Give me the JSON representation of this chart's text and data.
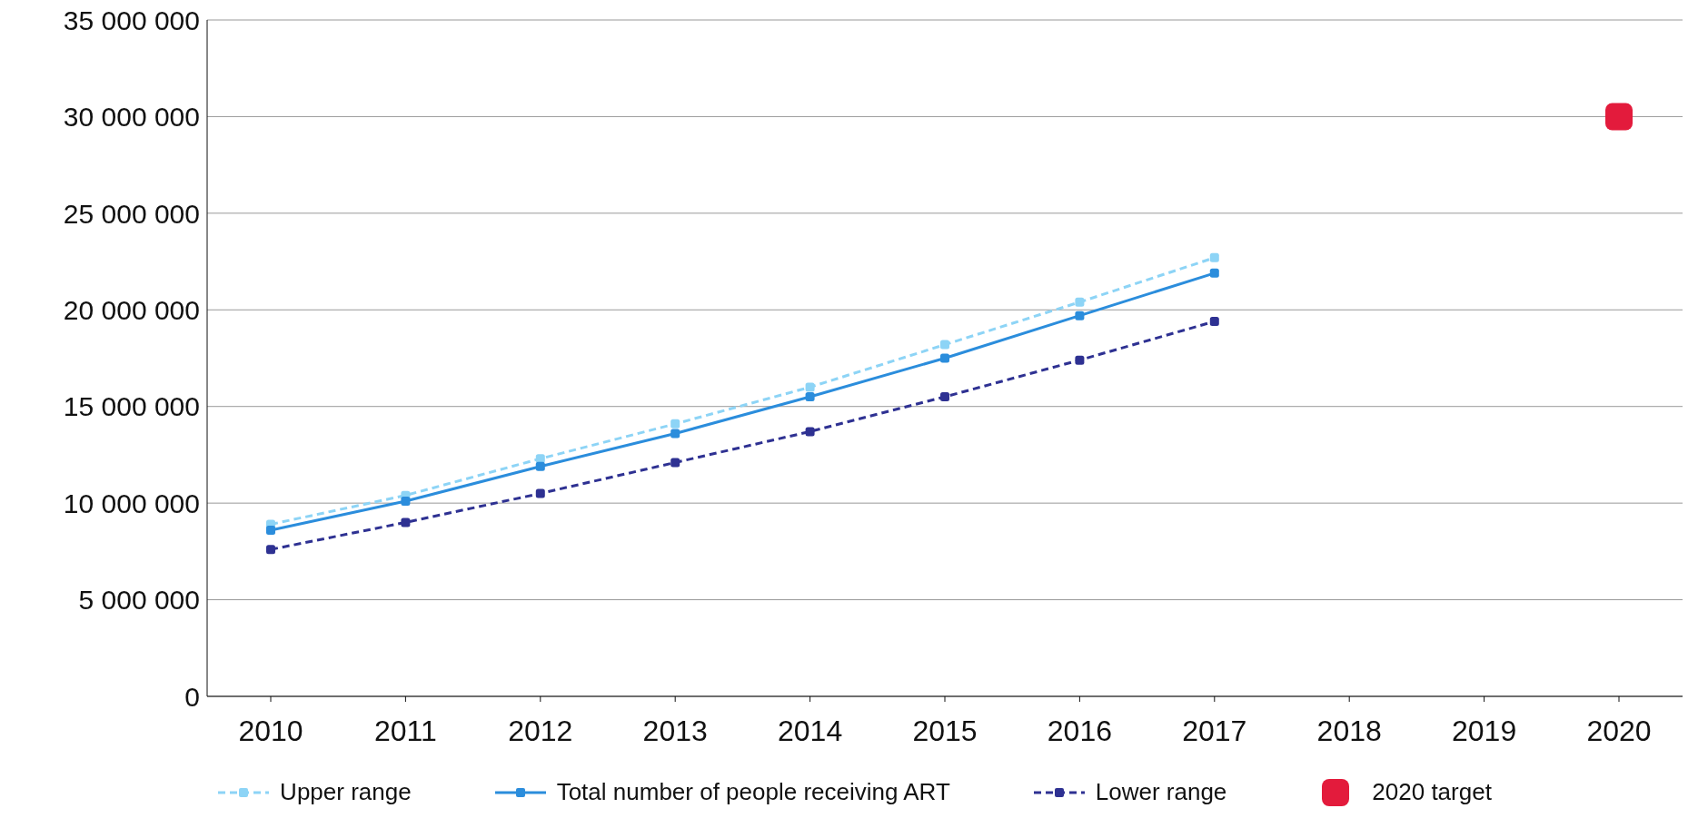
{
  "chart_data": {
    "type": "line",
    "categories": [
      "2010",
      "2011",
      "2012",
      "2013",
      "2014",
      "2015",
      "2016",
      "2017",
      "2018",
      "2019",
      "2020"
    ],
    "series": [
      {
        "name": "Upper range",
        "color": "#8dd4f6",
        "line_style": "dashed",
        "values": [
          8900000,
          10400000,
          12300000,
          14100000,
          16000000,
          18200000,
          20400000,
          22700000,
          null,
          null,
          null
        ]
      },
      {
        "name": "Total number of people receiving ART",
        "color": "#2b8ddc",
        "line_style": "solid",
        "values": [
          8600000,
          10100000,
          11900000,
          13600000,
          15500000,
          17500000,
          19700000,
          21900000,
          null,
          null,
          null
        ]
      },
      {
        "name": "Lower range",
        "color": "#2e3192",
        "line_style": "dashed",
        "values": [
          7600000,
          9000000,
          10500000,
          12100000,
          13700000,
          15500000,
          17400000,
          19400000,
          null,
          null,
          null
        ]
      },
      {
        "name": "2020 target",
        "type": "scatter",
        "color": "#e31b3c",
        "values": [
          null,
          null,
          null,
          null,
          null,
          null,
          null,
          null,
          null,
          null,
          30000000
        ]
      }
    ],
    "ylim": [
      0,
      35000000
    ],
    "yticks": [
      {
        "value": 0,
        "label": "0"
      },
      {
        "value": 5000000,
        "label": "5 000 000"
      },
      {
        "value": 10000000,
        "label": "10 000 000"
      },
      {
        "value": 15000000,
        "label": "15 000 000"
      },
      {
        "value": 20000000,
        "label": "20 000 000"
      },
      {
        "value": 25000000,
        "label": "25 000 000"
      },
      {
        "value": 30000000,
        "label": "30 000 000"
      },
      {
        "value": 35000000,
        "label": "35 000 000"
      }
    ],
    "grid": "y",
    "legend": "bottom",
    "marker": "square"
  }
}
